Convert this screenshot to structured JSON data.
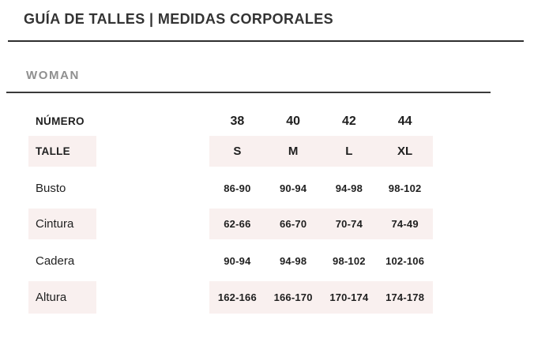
{
  "header": {
    "title": "GUÍA DE TALLES | MEDIDAS CORPORALES"
  },
  "section": {
    "label": "WOMAN"
  },
  "table": {
    "rows": [
      {
        "label": "NÚMERO",
        "highlight": false,
        "values": [
          "38",
          "40",
          "42",
          "44"
        ]
      },
      {
        "label": "TALLE",
        "highlight": true,
        "values": [
          "S",
          "M",
          "L",
          "XL"
        ]
      },
      {
        "label": "Busto",
        "highlight": false,
        "values": [
          "86-90",
          "90-94",
          "94-98",
          "98-102"
        ]
      },
      {
        "label": "Cintura",
        "highlight": true,
        "values": [
          "62-66",
          "66-70",
          "70-74",
          "74-49"
        ]
      },
      {
        "label": "Cadera",
        "highlight": false,
        "values": [
          "90-94",
          "94-98",
          "98-102",
          "102-106"
        ]
      },
      {
        "label": "Altura",
        "highlight": true,
        "values": [
          "162-166",
          "166-170",
          "170-174",
          "174-178"
        ]
      }
    ]
  },
  "colors": {
    "highlight_bg": "#f9f0ef",
    "title_text": "#333333",
    "muted_text": "#8f8f8f",
    "divider": "#2f2f2f"
  }
}
